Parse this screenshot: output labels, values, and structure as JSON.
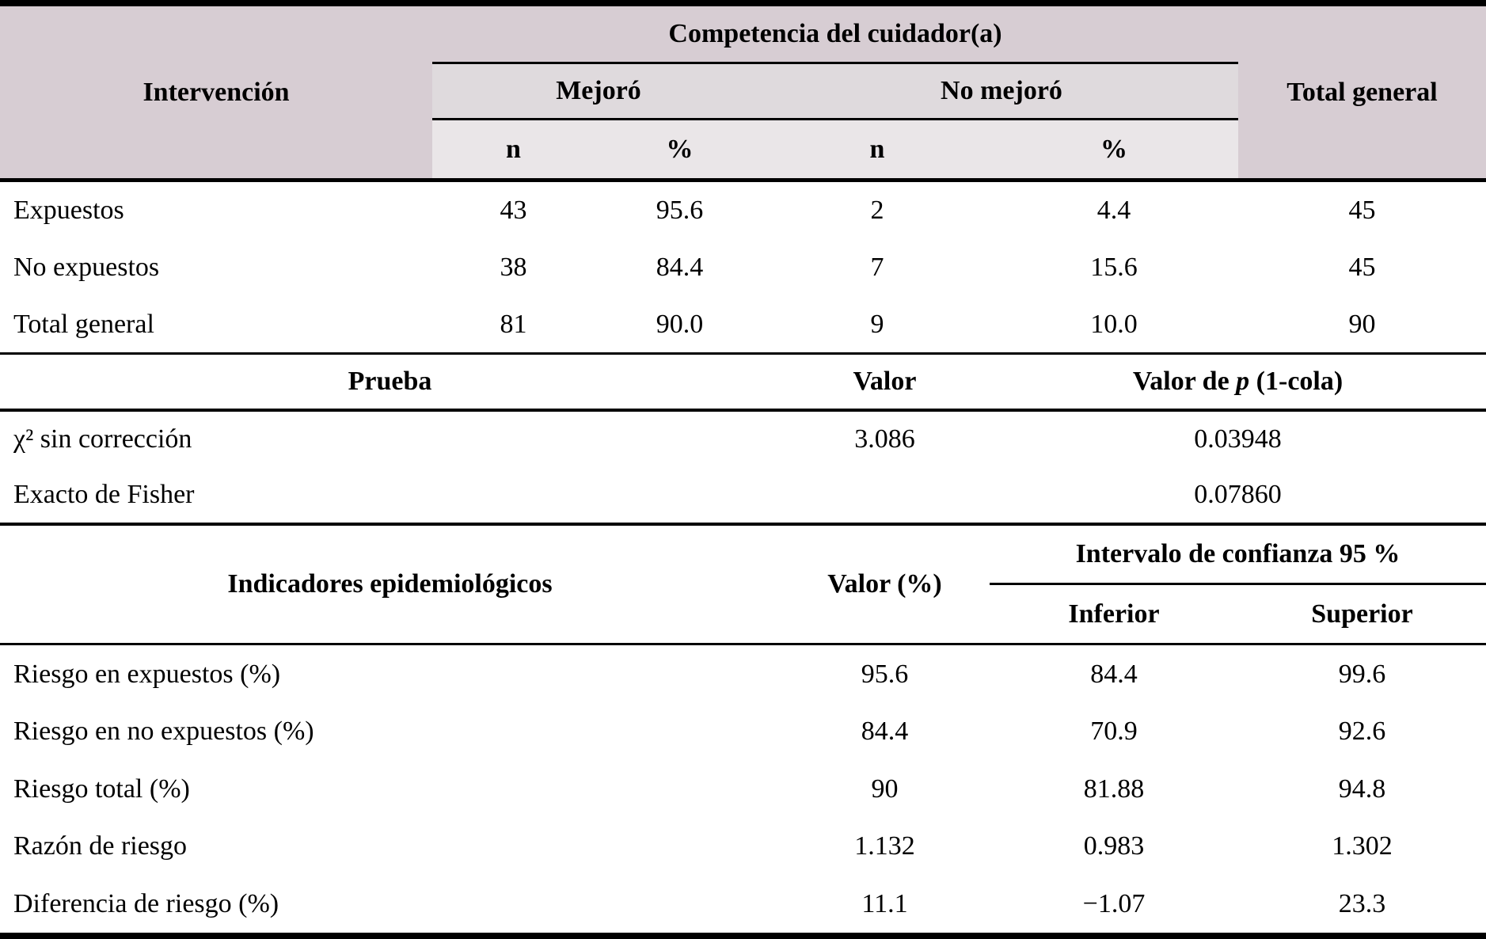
{
  "colors": {
    "header_bg": "#d7cdd3",
    "group_band_bg": "#dfdadd",
    "subheader_band_bg": "#eae6e8",
    "rule": "#000000",
    "body_bg": "#ffffff",
    "text": "#000000"
  },
  "table1": {
    "header": {
      "col_intervencion": "Intervención",
      "span_competencia": "Competencia del cuidador(a)",
      "group_mejoro": "Mejoró",
      "group_no_mejoro": "No mejoró",
      "sub_n_mejoro": "n",
      "sub_pct_mejoro": "%",
      "sub_n_no_mejoro": "n",
      "sub_pct_no_mejoro": "%",
      "col_total": "Total general"
    },
    "rows": [
      {
        "label": "Expuestos",
        "mejoro_n": "43",
        "mejoro_pct": "95.6",
        "no_mejoro_n": "2",
        "no_mejoro_pct": "4.4",
        "total": "45"
      },
      {
        "label": "No expuestos",
        "mejoro_n": "38",
        "mejoro_pct": "84.4",
        "no_mejoro_n": "7",
        "no_mejoro_pct": "15.6",
        "total": "45"
      },
      {
        "label": "Total general",
        "mejoro_n": "81",
        "mejoro_pct": "90.0",
        "no_mejoro_n": "9",
        "no_mejoro_pct": "10.0",
        "total": "90"
      }
    ]
  },
  "table2": {
    "header": {
      "prueba": "Prueba",
      "valor": "Valor",
      "p_prefix": "Valor de ",
      "p_italic": "p",
      "p_suffix": " (1-cola)"
    },
    "rows": [
      {
        "label": "χ² sin corrección",
        "valor": "3.086",
        "p": "0.03948"
      },
      {
        "label": "Exacto de Fisher",
        "valor": "",
        "p": "0.07860"
      }
    ]
  },
  "table3": {
    "header": {
      "indicadores": "Indicadores epidemiológicos",
      "valor": "Valor (%)",
      "intervalo": "Intervalo de confianza 95 %",
      "inferior": "Inferior",
      "superior": "Superior"
    },
    "rows": [
      {
        "label": "Riesgo en expuestos (%)",
        "valor": "95.6",
        "inferior": "84.4",
        "superior": "99.6"
      },
      {
        "label": "Riesgo en no expuestos (%)",
        "valor": "84.4",
        "inferior": "70.9",
        "superior": "92.6"
      },
      {
        "label": "Riesgo total (%)",
        "valor": "90",
        "inferior": "81.88",
        "superior": "94.8"
      },
      {
        "label": "Razón de riesgo",
        "valor": "1.132",
        "inferior": "0.983",
        "superior": "1.302"
      },
      {
        "label": "Diferencia de riesgo (%)",
        "valor": "11.1",
        "inferior": "−1.07",
        "superior": "23.3"
      }
    ]
  }
}
